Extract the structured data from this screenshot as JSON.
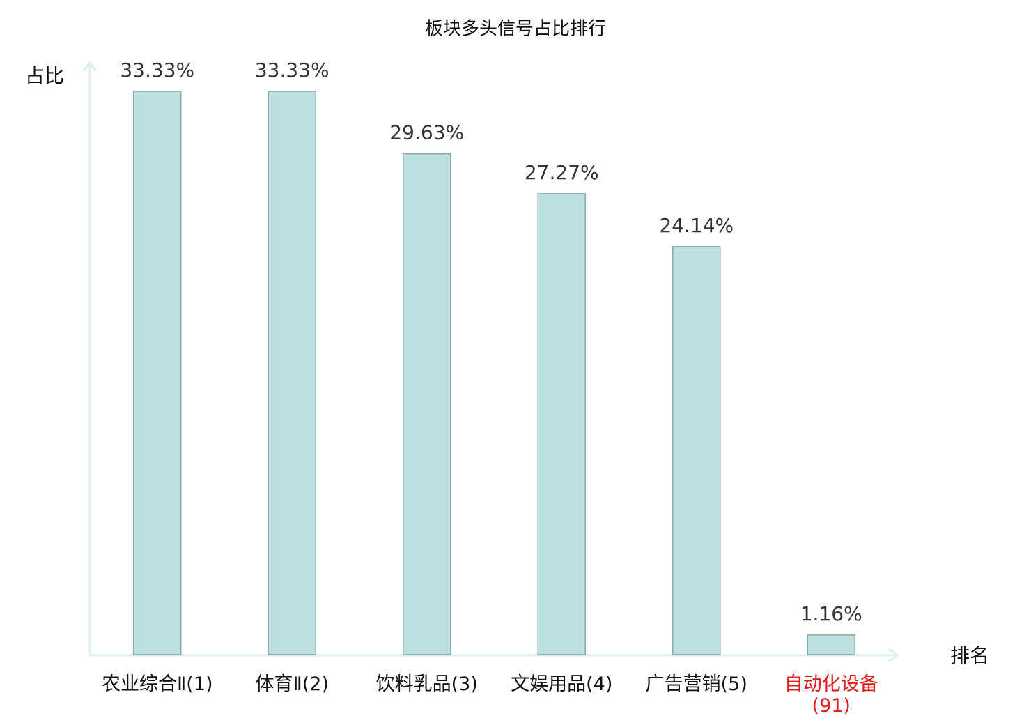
{
  "chart_data": {
    "type": "bar",
    "title": "板块多头信号占比排行",
    "y_label": "占比",
    "x_label": "排名",
    "categories": [
      "农业综合Ⅱ(1)",
      "体育Ⅱ(2)",
      "饮料乳品(3)",
      "文娱用品(4)",
      "广告营销(5)",
      "自动化设备(91)"
    ],
    "category_colors": [
      "#111111",
      "#111111",
      "#111111",
      "#111111",
      "#111111",
      "#e31a1c"
    ],
    "values": [
      33.33,
      33.33,
      29.63,
      27.27,
      24.14,
      1.16
    ],
    "value_labels": [
      "33.33%",
      "33.33%",
      "29.63%",
      "27.27%",
      "24.14%",
      "1.16%"
    ],
    "color": "#bde0e3",
    "edge_color": "#8aa9aa"
  }
}
